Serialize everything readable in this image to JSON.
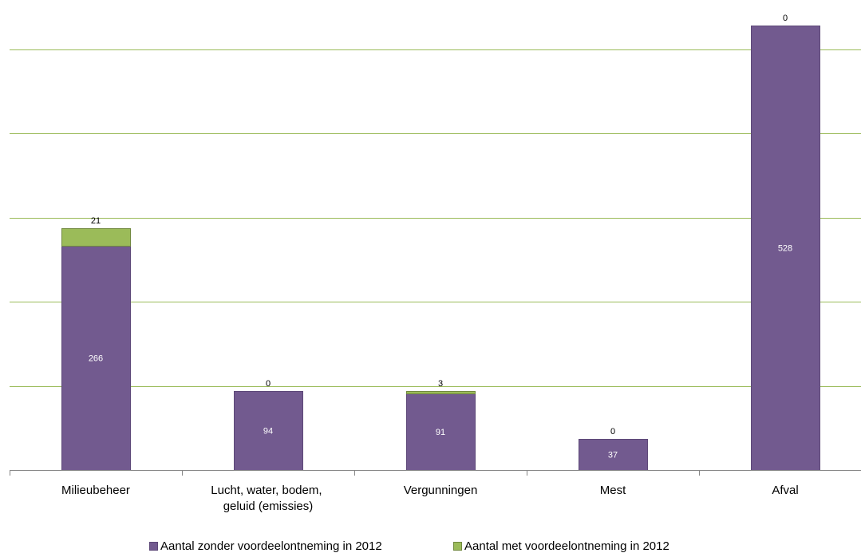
{
  "chart_data": {
    "type": "bar",
    "stacked": true,
    "title": "",
    "xlabel": "",
    "ylabel": "",
    "categories": [
      "Milieubeheer",
      "Lucht, water, bodem, geluid (emissies)",
      "Vergunningen",
      "Mest",
      "Afval"
    ],
    "series": [
      {
        "name": "Aantal zonder voordeelontneming in 2012",
        "values": [
          266,
          94,
          91,
          37,
          528
        ],
        "color": "#725a8f",
        "data_labels": "center"
      },
      {
        "name": "Aantal met voordeelontneming in 2012",
        "values": [
          21,
          0,
          3,
          0,
          0
        ],
        "color": "#9bbb59",
        "data_labels": "outside-end"
      }
    ],
    "ylim": [
      0,
      600
    ],
    "y_axis_visible": false,
    "grid": true,
    "gridlines": [
      100,
      200,
      300,
      400,
      500
    ],
    "legend": "bottom"
  }
}
